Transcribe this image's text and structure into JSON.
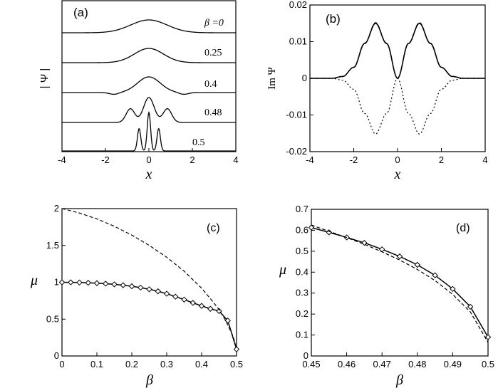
{
  "chart_data": [
    {
      "panel": "(a)",
      "type": "line",
      "xlabel": "x",
      "ylabel": "| Ψ |",
      "xlim": [
        -4,
        4
      ],
      "x_ticks": [
        "-4",
        "-2",
        "0",
        "2",
        "4"
      ],
      "grid": false,
      "series": [
        {
          "name": "β =0",
          "beta": 0,
          "values": "|Ψ| stacked trace, offset 4; broad single peak, width ~2"
        },
        {
          "name": "0.25",
          "beta": 0.25,
          "values": "|Ψ| stacked trace, offset 3; single peak, width ~1.5"
        },
        {
          "name": "0.4",
          "beta": 0.4,
          "values": "|Ψ| stacked trace, offset 2; narrower peak with small side dips near x=±1.5"
        },
        {
          "name": "0.48",
          "beta": 0.48,
          "values": "|Ψ| stacked trace, offset 1; central peak with side lobes near x=±0.8"
        },
        {
          "name": "0.5",
          "beta": 0.5,
          "values": "|Ψ| stacked trace, offset 0; three sharp peaks at x≈-0.45, 0, 0.45"
        }
      ]
    },
    {
      "panel": "(b)",
      "type": "line",
      "xlabel": "x",
      "ylabel": "Im Ψ",
      "xlim": [
        -4,
        4
      ],
      "ylim": [
        -0.02,
        0.02
      ],
      "x_ticks": [
        "-4",
        "-2",
        "0",
        "2",
        "4"
      ],
      "y_ticks": [
        "-0.02",
        "-0.01",
        "0",
        "0.01",
        "0.02"
      ],
      "grid": false,
      "x": [
        -4,
        -3,
        -2.5,
        -2,
        -1.5,
        -1,
        -0.5,
        0,
        0.5,
        1,
        1.5,
        2,
        2.5,
        3,
        4
      ],
      "series": [
        {
          "style": "solid",
          "values": [
            0,
            0,
            0.0005,
            0.003,
            0.0095,
            0.015,
            0.0095,
            0,
            0.0095,
            0.015,
            0.0095,
            0.003,
            0.0005,
            0,
            0
          ]
        },
        {
          "style": "dashed",
          "values": [
            0,
            0,
            0.0005,
            0.003,
            0.0096,
            0.0152,
            0.0096,
            0,
            0.0096,
            0.0152,
            0.0096,
            0.003,
            0.0005,
            0,
            0
          ]
        },
        {
          "style": "dotted",
          "values": [
            0,
            0,
            -0.0005,
            -0.003,
            -0.0096,
            -0.0152,
            -0.0096,
            0,
            -0.0096,
            -0.0152,
            -0.0096,
            -0.003,
            -0.0005,
            0,
            0
          ]
        }
      ]
    },
    {
      "panel": "(c)",
      "type": "line",
      "xlabel": "β",
      "ylabel": "μ",
      "xlim": [
        0,
        0.5
      ],
      "ylim": [
        0,
        2
      ],
      "x_ticks": [
        "0",
        "0.1",
        "0.2",
        "0.3",
        "0.4",
        "0.5"
      ],
      "y_ticks": [
        "0",
        "0.5",
        "1",
        "1.5",
        "2"
      ],
      "grid": false,
      "series": [
        {
          "style": "solid-diamond",
          "x": [
            0,
            0.025,
            0.05,
            0.075,
            0.1,
            0.125,
            0.15,
            0.175,
            0.2,
            0.225,
            0.25,
            0.275,
            0.3,
            0.325,
            0.35,
            0.375,
            0.4,
            0.425,
            0.45,
            0.475,
            0.5
          ],
          "values": [
            1.0,
            0.999,
            0.997,
            0.993,
            0.988,
            0.981,
            0.972,
            0.96,
            0.946,
            0.928,
            0.905,
            0.878,
            0.845,
            0.805,
            0.765,
            0.72,
            0.68,
            0.64,
            0.61,
            0.48,
            0.09
          ]
        },
        {
          "style": "dashed",
          "x": [
            0,
            0.05,
            0.1,
            0.15,
            0.2,
            0.25,
            0.3,
            0.35,
            0.4,
            0.43,
            0.45,
            0.47,
            0.49,
            0.5
          ],
          "values": [
            2.0,
            1.94,
            1.86,
            1.76,
            1.64,
            1.5,
            1.34,
            1.15,
            0.92,
            0.75,
            0.63,
            0.47,
            0.27,
            0.1
          ]
        }
      ]
    },
    {
      "panel": "(d)",
      "type": "line",
      "xlabel": "β",
      "ylabel": "μ",
      "xlim": [
        0.45,
        0.5
      ],
      "ylim": [
        0,
        0.7
      ],
      "x_ticks": [
        "0.45",
        "0.46",
        "0.47",
        "0.48",
        "0.49",
        "0.5"
      ],
      "y_ticks": [
        "0",
        "0.1",
        "0.2",
        "0.3",
        "0.4",
        "0.5",
        "0.6",
        "0.7"
      ],
      "grid": false,
      "series": [
        {
          "style": "solid-diamond",
          "x": [
            0.45,
            0.455,
            0.46,
            0.465,
            0.47,
            0.475,
            0.48,
            0.485,
            0.49,
            0.495,
            0.5
          ],
          "values": [
            0.613,
            0.59,
            0.566,
            0.54,
            0.509,
            0.475,
            0.435,
            0.385,
            0.32,
            0.235,
            0.09
          ]
        },
        {
          "style": "dashed",
          "x": [
            0.45,
            0.455,
            0.46,
            0.465,
            0.47,
            0.475,
            0.48,
            0.485,
            0.49,
            0.495,
            0.5
          ],
          "values": [
            0.625,
            0.595,
            0.565,
            0.533,
            0.497,
            0.458,
            0.413,
            0.36,
            0.294,
            0.21,
            0.065
          ]
        }
      ]
    }
  ],
  "labels": {
    "a_panel": "(a)",
    "b_panel": "(b)",
    "c_panel": "(c)",
    "d_panel": "(d)",
    "psi_abs": "| Ψ |",
    "im_psi": "Im Ψ",
    "x": "x",
    "beta": "β",
    "mu": "μ"
  }
}
